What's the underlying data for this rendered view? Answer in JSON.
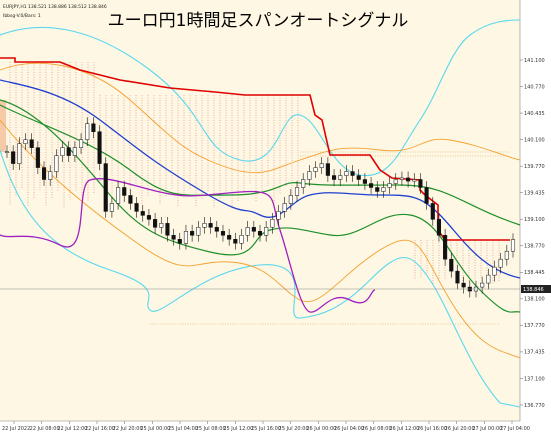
{
  "chart_data": {
    "type": "candlestick",
    "title": "ユーロ円1時間足スパンオートシグナル",
    "header": {
      "line1": "EURJPY,H1  138.521 138.886 138.512 138.846",
      "line2": "Ibbsg-V.0/Bars: 1"
    },
    "current_price": 138.846,
    "current_price_label": "138.846",
    "ylim": [
      136.65,
      141.55
    ],
    "y_ticks": [
      "141.100",
      "140.770",
      "140.435",
      "140.100",
      "139.770",
      "139.435",
      "139.100",
      "138.770",
      "138.445",
      "138.100",
      "137.770",
      "137.435",
      "137.100",
      "136.770"
    ],
    "x_ticks": [
      "22 Jul 2022",
      "22 Jul 08:00",
      "22 Jul 12:00",
      "22 Jul 16:00",
      "22 Jul 20:00",
      "25 Jul 00:00",
      "25 Jul 04:00",
      "25 Jul 08:00",
      "25 Jul 12:00",
      "25 Jul 16:00",
      "25 Jul 20:00",
      "26 Jul 00:00",
      "26 Jul 04:00",
      "26 Jul 08:00",
      "26 Jul 12:00",
      "26 Jul 16:00",
      "26 Jul 20:00",
      "27 Jul 00:00",
      "27 Jul 04:00"
    ],
    "candles_close": [
      139.95,
      139.8,
      140.05,
      140.1,
      140.0,
      139.75,
      139.6,
      139.7,
      139.9,
      140.0,
      139.9,
      140.0,
      140.1,
      140.3,
      140.2,
      139.8,
      139.2,
      139.3,
      139.5,
      139.4,
      139.3,
      139.2,
      139.15,
      139.1,
      139.0,
      139.05,
      138.9,
      138.85,
      138.8,
      138.95,
      138.9,
      139.0,
      139.05,
      139.0,
      138.95,
      138.9,
      138.85,
      138.8,
      138.9,
      139.0,
      138.95,
      138.9,
      139.0,
      139.1,
      139.2,
      139.3,
      139.4,
      139.5,
      139.6,
      139.7,
      139.75,
      139.8,
      139.65,
      139.6,
      139.65,
      139.7,
      139.65,
      139.6,
      139.55,
      139.5,
      139.45,
      139.5,
      139.55,
      139.6,
      139.62,
      139.58,
      139.6,
      139.5,
      139.3,
      139.1,
      138.9,
      138.6,
      138.45,
      138.3,
      138.25,
      138.2,
      138.25,
      138.3,
      138.4,
      138.5,
      138.6,
      138.7,
      138.846
    ]
  }
}
